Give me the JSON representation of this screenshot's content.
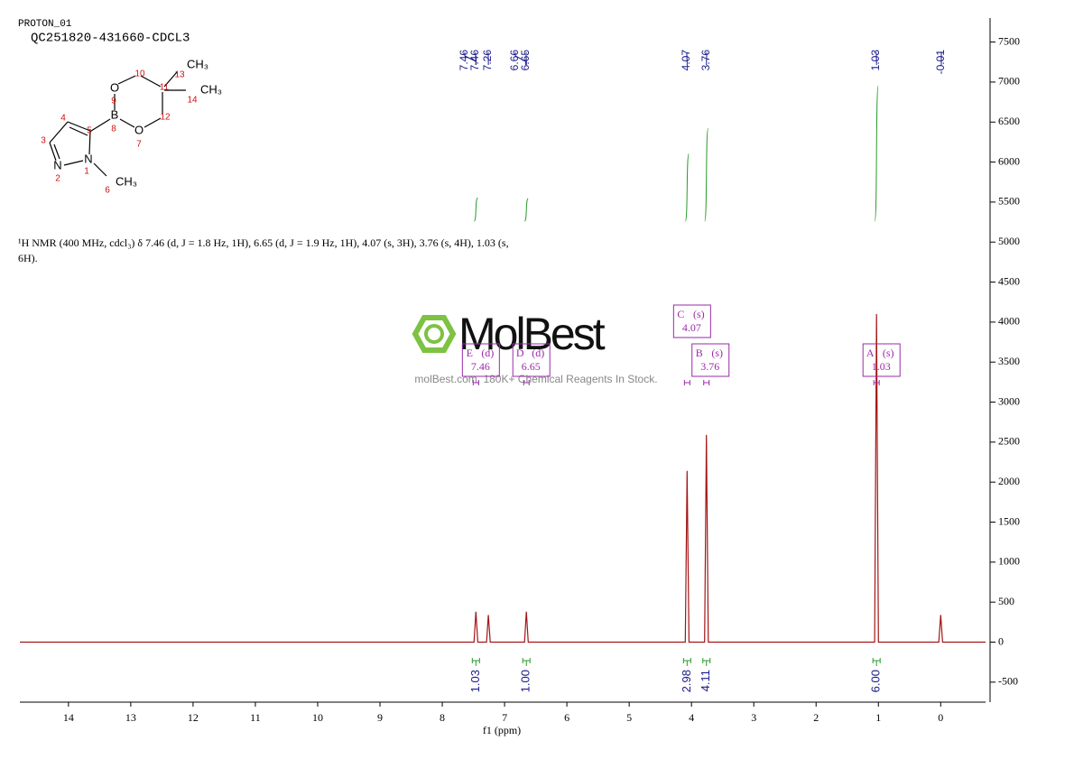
{
  "header": {
    "experiment": "PROTON_01",
    "sample": "QC251820-431660-CDCL3"
  },
  "structure": {
    "atoms": [
      "O",
      "B",
      "O",
      "N",
      "N",
      "CH₃",
      "CH₃",
      "CH₃"
    ],
    "numbers": [
      "1",
      "2",
      "3",
      "4",
      "5",
      "6",
      "7",
      "8",
      "9",
      "10",
      "11",
      "12",
      "13",
      "14"
    ]
  },
  "description": "¹H NMR (400 MHz, cdcl₃) δ 7.46 (d, J = 1.8 Hz, 1H), 6.65 (d, J = 1.9 Hz, 1H), 4.07 (s, 3H), 3.76 (s, 4H), 1.03 (s, 6H).",
  "watermark": {
    "brand": "MolBest",
    "tagline": "molBest.com, 180K+ Chemical Reagents In Stock."
  },
  "chart_data": {
    "type": "line",
    "x_label": "f1 (ppm)",
    "color": "#a31515",
    "xlim": [
      14.78,
      -0.72
    ],
    "xticks": [
      14,
      13,
      12,
      11,
      10,
      9,
      8,
      7,
      6,
      5,
      4,
      3,
      2,
      1,
      0
    ],
    "ylim": [
      -750,
      7800
    ],
    "yticks": [
      -500,
      0,
      500,
      1000,
      1500,
      2000,
      2500,
      3000,
      3500,
      4000,
      4500,
      5000,
      5500,
      6000,
      6500,
      7000,
      7500
    ],
    "x": [
      14.78,
      7.49,
      7.46,
      7.43,
      7.29,
      7.26,
      7.23,
      6.68,
      6.65,
      6.62,
      4.1,
      4.07,
      4.04,
      3.79,
      3.76,
      3.73,
      1.06,
      1.03,
      1.0,
      0.03,
      0,
      -0.03,
      -0.72
    ],
    "values": [
      0,
      0,
      380,
      0,
      0,
      340,
      0,
      0,
      380,
      0,
      0,
      2140,
      0,
      0,
      2590,
      0,
      0,
      4100,
      0,
      0,
      340,
      0,
      0
    ],
    "peak_picks": [
      7.46,
      7.46,
      7.26,
      6.66,
      6.65,
      4.07,
      3.76,
      1.03,
      -0.01
    ],
    "integrals": {
      "x": [
        7.46,
        6.65,
        4.07,
        3.76,
        1.03
      ],
      "values": [
        1.03,
        1,
        2.98,
        4.11,
        6
      ],
      "value_labels": [
        "1.03",
        "1.00",
        "2.98",
        "4.11",
        "6.00"
      ]
    },
    "multiplets": [
      {
        "name": "A",
        "multiplicity": "(s)",
        "shift": 1.03
      },
      {
        "name": "B",
        "multiplicity": "(s)",
        "shift": 3.76
      },
      {
        "name": "C",
        "multiplicity": "(s)",
        "shift": 4.07
      },
      {
        "name": "D",
        "multiplicity": "(d)",
        "shift": 6.65
      },
      {
        "name": "E",
        "multiplicity": "(d)",
        "shift": 7.46
      }
    ]
  }
}
